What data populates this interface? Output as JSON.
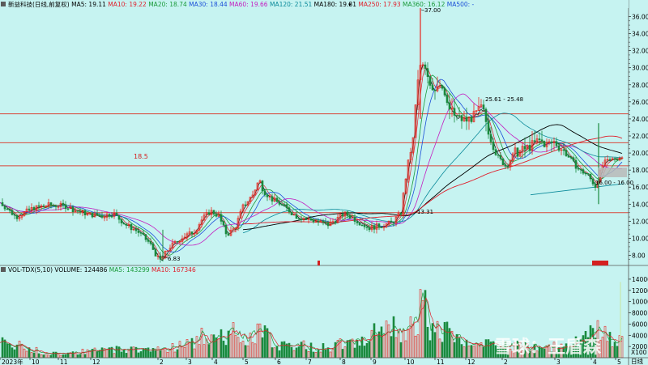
{
  "window": {
    "title_label": "新益科技(日线,前复权)"
  },
  "ma_legend": [
    {
      "text": "MA5: 19.11",
      "color": "#000000"
    },
    {
      "text": "MA10: 19.22",
      "color": "#e0202c"
    },
    {
      "text": "MA20: 18.74",
      "color": "#1a9a3a"
    },
    {
      "text": "MA30: 18.44",
      "color": "#1b4fd8"
    },
    {
      "text": "MA60: 19.66",
      "color": "#c41cc0"
    },
    {
      "text": "MA120: 21.51",
      "color": "#0a8a9a"
    },
    {
      "text": "MA180: 19.81",
      "color": "#000000"
    },
    {
      "text": "MA250: 17.93",
      "color": "#e0202c"
    },
    {
      "text": "MA360: 16.12",
      "color": "#1a9a3a"
    },
    {
      "text": "MA500: -",
      "color": "#1b4fd8"
    }
  ],
  "vol_legend": [
    {
      "text": "VOL-TDX(5,10) VOLUME: 124486",
      "color": "#000000"
    },
    {
      "text": "MA5: 143299",
      "color": "#1a9a3a"
    },
    {
      "text": "MA10: 167346",
      "color": "#e0202c"
    }
  ],
  "price_axis": {
    "ticks": [
      "36.00",
      "34.00",
      "32.00",
      "30.00",
      "28.00",
      "26.00",
      "24.00",
      "22.00",
      "20.00",
      "18.00",
      "16.00",
      "14.00",
      "12.00",
      "10.00",
      "8.00"
    ]
  },
  "volume_axis": {
    "ticks": [
      "14000",
      "12000",
      "10000",
      "8000",
      "6000",
      "4000",
      "2000"
    ],
    "unit": "X100"
  },
  "x_axis": {
    "labels": [
      "2023年",
      "10",
      "11",
      "12",
      "2",
      "3",
      "4",
      "5",
      "6",
      "7",
      "8",
      "9",
      "10",
      "11",
      "12",
      "2",
      "3",
      "4",
      "5"
    ],
    "period_label": "日线"
  },
  "annotations": {
    "high": "37.00",
    "low": "6.83",
    "line_level": "18.5",
    "range_label": "25.61 - 25.48",
    "low_range": "16.00 - 16.00",
    "support": "13.31"
  },
  "watermark": {
    "text": "雪球：王盾森"
  },
  "chart_data": {
    "type": "candlestick",
    "period": "daily",
    "ylim": [
      7,
      37
    ],
    "y2lim": [
      0,
      14000
    ],
    "x_labels": [
      "2023年",
      "10",
      "11",
      "12",
      "2",
      "3",
      "4",
      "5",
      "6",
      "7",
      "8",
      "9",
      "10",
      "11",
      "12",
      "2",
      "3",
      "4",
      "5"
    ],
    "horizontal_lines": [
      24.6,
      21.2,
      18.5,
      13.0
    ],
    "ma_latest": {
      "MA5": 19.11,
      "MA10": 19.22,
      "MA20": 18.74,
      "MA30": 18.44,
      "MA60": 19.66,
      "MA120": 21.51,
      "MA180": 19.81,
      "MA250": 17.93,
      "MA360": 16.12
    },
    "close_keypoints": [
      [
        0,
        14.2
      ],
      [
        20,
        12.5
      ],
      [
        40,
        13.5
      ],
      [
        60,
        13.9
      ],
      [
        80,
        13.8
      ],
      [
        95,
        13.2
      ],
      [
        110,
        12.8
      ],
      [
        125,
        12.6
      ],
      [
        140,
        12.9
      ],
      [
        155,
        11.6
      ],
      [
        170,
        10.8
      ],
      [
        185,
        9.4
      ],
      [
        197,
        7.3
      ],
      [
        210,
        9.0
      ],
      [
        225,
        10.1
      ],
      [
        240,
        10.8
      ],
      [
        250,
        12.3
      ],
      [
        260,
        13.2
      ],
      [
        270,
        12.6
      ],
      [
        280,
        10.4
      ],
      [
        290,
        11.2
      ],
      [
        300,
        13.7
      ],
      [
        312,
        15.1
      ],
      [
        320,
        16.9
      ],
      [
        325,
        15.6
      ],
      [
        335,
        14.6
      ],
      [
        345,
        14.1
      ],
      [
        355,
        13.4
      ],
      [
        365,
        12.6
      ],
      [
        375,
        12.3
      ],
      [
        385,
        12.1
      ],
      [
        395,
        11.9
      ],
      [
        405,
        11.6
      ],
      [
        415,
        12.2
      ],
      [
        425,
        12.9
      ],
      [
        435,
        12.4
      ],
      [
        445,
        11.8
      ],
      [
        455,
        11.2
      ],
      [
        465,
        11.4
      ],
      [
        475,
        11.6
      ],
      [
        485,
        11.9
      ],
      [
        495,
        13.0
      ],
      [
        500,
        16.5
      ],
      [
        505,
        19.5
      ],
      [
        510,
        21.5
      ],
      [
        515,
        28.0
      ],
      [
        520,
        30.5
      ],
      [
        528,
        29.0
      ],
      [
        535,
        27.5
      ],
      [
        545,
        28.5
      ],
      [
        552,
        25.5
      ],
      [
        560,
        24.5
      ],
      [
        568,
        24.0
      ],
      [
        575,
        23.8
      ],
      [
        585,
        24.3
      ],
      [
        595,
        25.4
      ],
      [
        605,
        22.0
      ],
      [
        615,
        19.5
      ],
      [
        625,
        18.4
      ],
      [
        635,
        20.0
      ],
      [
        645,
        20.3
      ],
      [
        655,
        20.8
      ],
      [
        665,
        21.5
      ],
      [
        675,
        21.0
      ],
      [
        685,
        21.3
      ],
      [
        695,
        20.3
      ],
      [
        705,
        19.2
      ],
      [
        715,
        18.0
      ],
      [
        725,
        17.5
      ],
      [
        735,
        16.1
      ],
      [
        745,
        18.8
      ],
      [
        755,
        19.2
      ],
      [
        765,
        19.5
      ],
      [
        770,
        19.4
      ]
    ],
    "volume_peaks": [
      [
        10,
        2500
      ],
      [
        60,
        700
      ],
      [
        120,
        1200
      ],
      [
        140,
        1500
      ],
      [
        200,
        1500
      ],
      [
        240,
        2600
      ],
      [
        250,
        4200
      ],
      [
        262,
        2700
      ],
      [
        292,
        5000
      ],
      [
        305,
        3500
      ],
      [
        322,
        5200
      ],
      [
        335,
        2600
      ],
      [
        410,
        1600
      ],
      [
        420,
        2800
      ],
      [
        500,
        5500
      ],
      [
        505,
        6500
      ],
      [
        515,
        7200
      ],
      [
        520,
        10800
      ],
      [
        530,
        6200
      ],
      [
        545,
        5000
      ],
      [
        560,
        3500
      ],
      [
        575,
        2500
      ],
      [
        600,
        2200
      ],
      [
        640,
        2000
      ],
      [
        700,
        1800
      ],
      [
        740,
        4600
      ],
      [
        755,
        3000
      ]
    ]
  }
}
